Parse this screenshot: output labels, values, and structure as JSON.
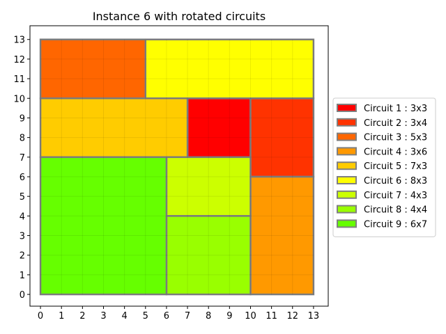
{
  "chart_data": {
    "type": "rectangle-packing",
    "title": "Instance 6 with rotated circuits",
    "xlabel": "",
    "ylabel": "",
    "xlim": [
      -0.5,
      13.7
    ],
    "ylim": [
      -0.6,
      13.7
    ],
    "xticks": [
      0,
      1,
      2,
      3,
      4,
      5,
      6,
      7,
      8,
      9,
      10,
      11,
      12,
      13
    ],
    "yticks": [
      0,
      1,
      2,
      3,
      4,
      5,
      6,
      7,
      8,
      9,
      10,
      11,
      12,
      13
    ],
    "grid": true,
    "legend_position": "center-right",
    "plate": {
      "x": 0,
      "y": 0,
      "width": 13,
      "height": 13
    },
    "circuits": [
      {
        "label": "Circuit 1 : 3x3",
        "x": 7,
        "y": 7,
        "w": 3,
        "h": 3,
        "color": "#ff0000"
      },
      {
        "label": "Circuit 2 : 3x4",
        "x": 10,
        "y": 6,
        "w": 3,
        "h": 4,
        "color": "#ff3300"
      },
      {
        "label": "Circuit 3 : 5x3",
        "x": 0,
        "y": 10,
        "w": 5,
        "h": 3,
        "color": "#ff6600"
      },
      {
        "label": "Circuit 4 : 3x6",
        "x": 10,
        "y": 0,
        "w": 3,
        "h": 6,
        "color": "#ff9900"
      },
      {
        "label": "Circuit 5 : 7x3",
        "x": 0,
        "y": 7,
        "w": 7,
        "h": 3,
        "color": "#ffcc00"
      },
      {
        "label": "Circuit 6 : 8x3",
        "x": 5,
        "y": 10,
        "w": 8,
        "h": 3,
        "color": "#ffff00"
      },
      {
        "label": "Circuit 7 : 4x3",
        "x": 6,
        "y": 4,
        "w": 4,
        "h": 3,
        "color": "#ccff00"
      },
      {
        "label": "Circuit 8 : 4x4",
        "x": 6,
        "y": 0,
        "w": 4,
        "h": 4,
        "color": "#99ff00"
      },
      {
        "label": "Circuit 9 : 6x7",
        "x": 0,
        "y": 0,
        "w": 6,
        "h": 7,
        "color": "#66ff00"
      }
    ],
    "edge_color": "#808080"
  }
}
